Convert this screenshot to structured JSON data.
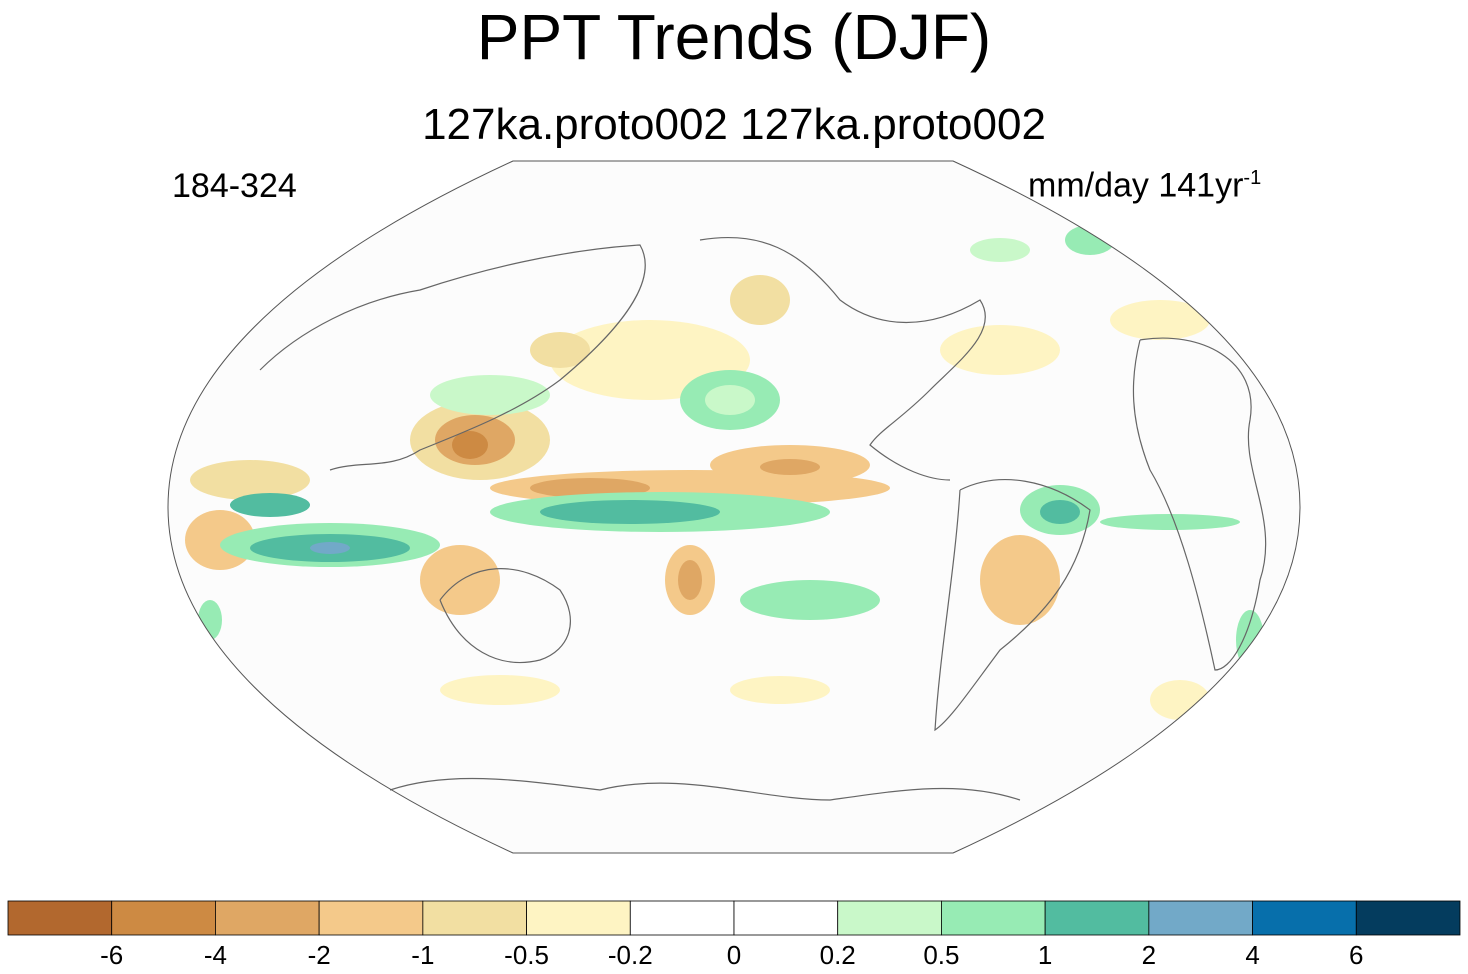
{
  "title": "PPT Trends (DJF)",
  "subtitle": "127ka.proto002  127ka.proto002",
  "left_label": "184-324",
  "units_label": "mm/day 141yr",
  "units_exponent": "-1",
  "colorbar": {
    "colors": [
      "#b2682e",
      "#cd8a43",
      "#dfa764",
      "#f4c98a",
      "#f2dfa2",
      "#fef4c3",
      "#ffffff",
      "#ffffff",
      "#c9f8c9",
      "#97ebb4",
      "#52bca0",
      "#72a9c8",
      "#076fab",
      "#043c5e"
    ],
    "tick_labels": [
      "-6",
      "-4",
      "-2",
      "-1",
      "-0.5",
      "-0.2",
      "0",
      "0.2",
      "0.5",
      "1",
      "2",
      "4",
      "6"
    ]
  },
  "map": {
    "projection": "Robinson",
    "ocean_color": "#fcfcfc",
    "coast_color": "#666666"
  }
}
